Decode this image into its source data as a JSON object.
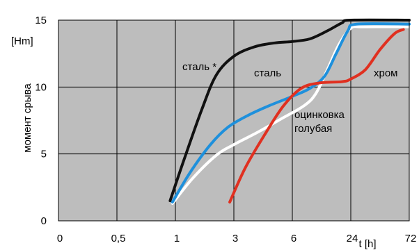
{
  "chart_data": {
    "type": "line",
    "ylabel": "момент срыва",
    "yunit": "[Hm]",
    "xlabel": "t [h]",
    "x_tick_labels": [
      "0",
      "0,5",
      "1",
      "3",
      "6",
      "24",
      "72"
    ],
    "y_ticks": [
      0,
      5,
      10,
      15
    ],
    "ylim": [
      0,
      15
    ],
    "grid": true,
    "legend": "none",
    "x_axis_note": "x axis is categorical-spaced: equal spacing between tick labels 0, 0,5, 1, 3, 6, 24, 72; x values below are given in tick-index units (0 = '0', 6 = '72')",
    "series": [
      {
        "name": "сталь *",
        "color": "#111111",
        "points": [
          [
            1.91,
            1.5
          ],
          [
            2.15,
            4.6
          ],
          [
            2.45,
            8.3
          ],
          [
            2.7,
            10.9
          ],
          [
            3.0,
            12.3
          ],
          [
            3.35,
            13.0
          ],
          [
            3.7,
            13.3
          ],
          [
            4.0,
            13.4
          ],
          [
            4.3,
            13.6
          ],
          [
            4.6,
            14.2
          ],
          [
            4.85,
            14.8
          ],
          [
            5.0,
            15.0
          ],
          [
            6.0,
            15.0
          ]
        ]
      },
      {
        "name": "сталь",
        "color": "#1e90dc",
        "points": [
          [
            1.95,
            1.4
          ],
          [
            2.25,
            3.6
          ],
          [
            2.6,
            5.7
          ],
          [
            2.9,
            7.0
          ],
          [
            3.25,
            7.9
          ],
          [
            3.6,
            8.6
          ],
          [
            4.0,
            9.3
          ],
          [
            4.3,
            9.9
          ],
          [
            4.55,
            10.8
          ],
          [
            4.75,
            12.5
          ],
          [
            4.95,
            14.2
          ],
          [
            5.1,
            14.7
          ],
          [
            6.0,
            14.7
          ]
        ]
      },
      {
        "name": "оцинковка голубая",
        "color": "#ffffff",
        "points": [
          [
            1.95,
            1.3
          ],
          [
            2.3,
            3.2
          ],
          [
            2.7,
            4.9
          ],
          [
            3.0,
            5.7
          ],
          [
            3.4,
            6.6
          ],
          [
            3.8,
            7.6
          ],
          [
            4.2,
            8.6
          ],
          [
            4.4,
            9.5
          ],
          [
            4.6,
            11.3
          ],
          [
            4.8,
            13.2
          ],
          [
            5.0,
            14.4
          ],
          [
            5.2,
            14.5
          ],
          [
            6.0,
            14.5
          ]
        ]
      },
      {
        "name": "хром",
        "color": "#e03020",
        "points": [
          [
            2.93,
            1.4
          ],
          [
            3.2,
            4.0
          ],
          [
            3.55,
            6.6
          ],
          [
            3.85,
            8.6
          ],
          [
            4.15,
            9.9
          ],
          [
            4.45,
            10.3
          ],
          [
            4.85,
            10.4
          ],
          [
            5.0,
            10.6
          ],
          [
            5.25,
            11.3
          ],
          [
            5.5,
            12.8
          ],
          [
            5.75,
            14.0
          ],
          [
            5.9,
            14.3
          ]
        ]
      }
    ],
    "annotations": [
      {
        "text": "сталь *",
        "series": "сталь *"
      },
      {
        "text": "сталь",
        "series": "сталь"
      },
      {
        "text": "хром",
        "series": "хром"
      },
      {
        "text": "оцинковка",
        "series": "оцинковка голубая"
      },
      {
        "text": "голубая",
        "series": "оцинковка голубая"
      }
    ]
  }
}
